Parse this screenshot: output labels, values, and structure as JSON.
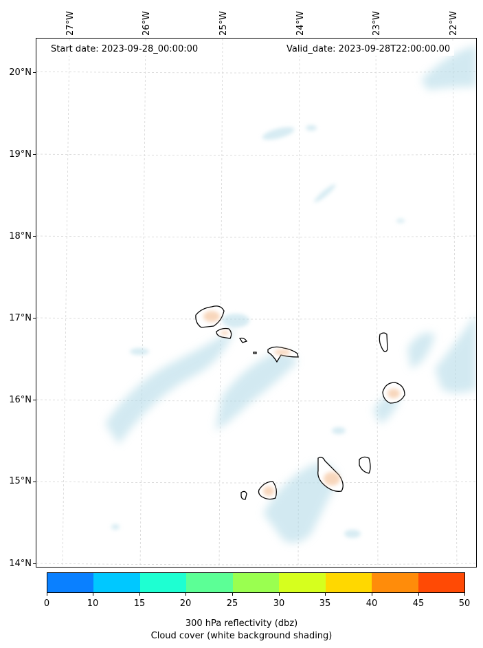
{
  "map": {
    "start_date": "Start date: 2023-09-28_00:00:00",
    "valid_date": "Valid_date: 2023-09-28T22:00:00.00",
    "lon_labels": [
      "27°W",
      "26°W",
      "25°W",
      "24°W",
      "23°W",
      "22°W"
    ],
    "lat_labels": [
      "20°N",
      "19°N",
      "18°N",
      "17°N",
      "16°N",
      "15°N",
      "14°N"
    ],
    "colors": {
      "cloud_shading": "#aed8e6",
      "land_fill": "#f6c9a6",
      "coast_line": "#000000",
      "grid_line": "#d0d0d0"
    }
  },
  "colorbar": {
    "ticks": [
      "0",
      "10",
      "15",
      "20",
      "25",
      "30",
      "35",
      "40",
      "45",
      "50"
    ],
    "colors": [
      "#0a80ff",
      "#00c8ff",
      "#1effd2",
      "#5cff96",
      "#9aff50",
      "#d6ff1e",
      "#ffd800",
      "#ff8c0a",
      "#ff4a05"
    ],
    "label_line1": "300 hPa reflectivity (dbz)",
    "label_line2": "Cloud cover (white background shading)"
  }
}
